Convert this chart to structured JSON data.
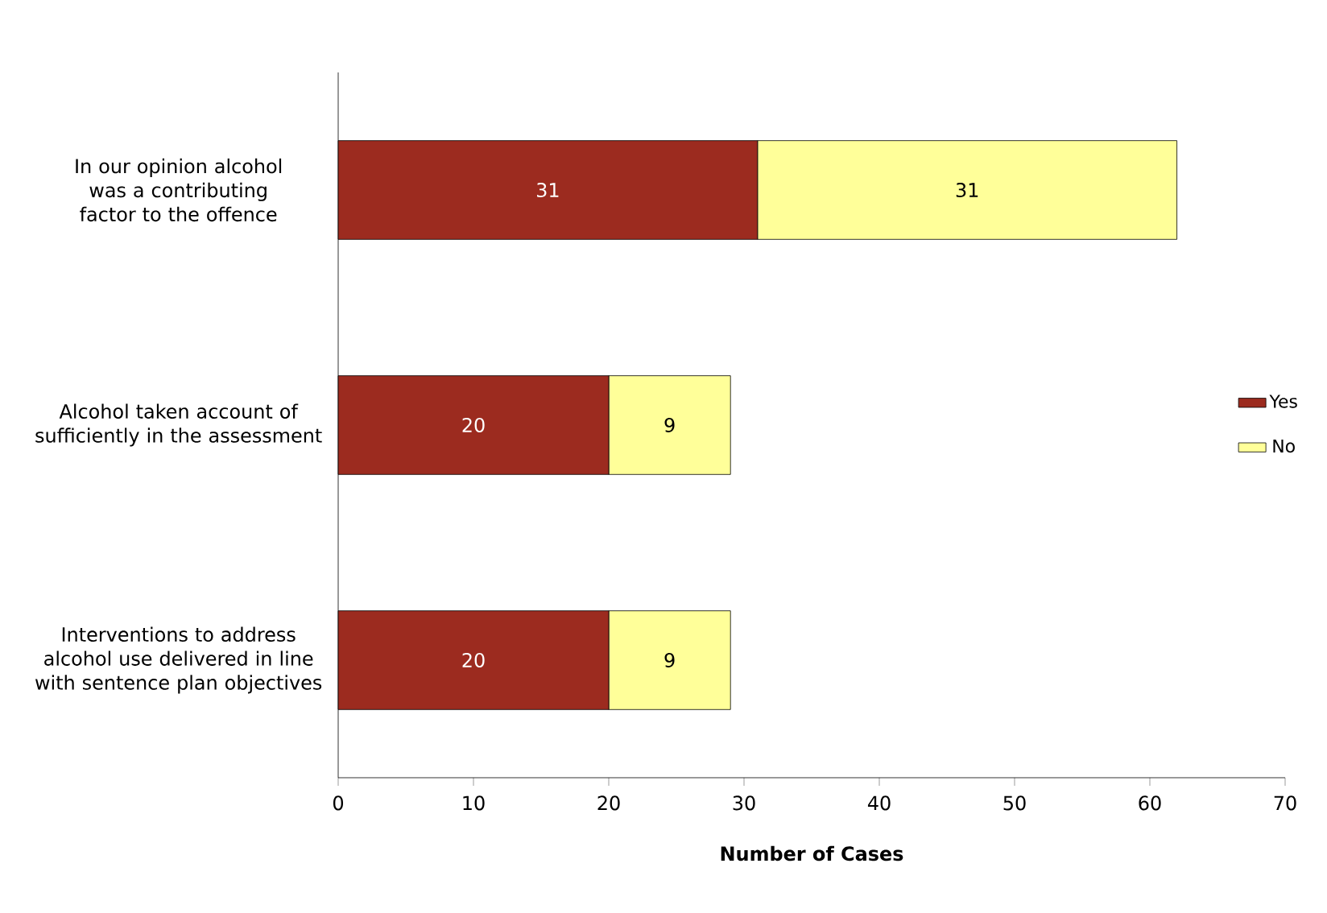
{
  "chart_data": {
    "type": "bar",
    "orientation": "horizontal",
    "stacked": true,
    "xlabel": "**Number of Cases**",
    "categories": [
      "In our opinion alcohol was a contributing factor to the offence",
      "Alcohol taken account of sufficiently in the assessment",
      "Interventions to address alcohol use delivered in line with sentence plan objectives"
    ],
    "series": [
      {
        "name": "Yes",
        "color": "#9c2b1f",
        "values": [
          31,
          20,
          20
        ],
        "value_labels": [
          "31",
          "20",
          "20"
        ]
      },
      {
        "name": "No",
        "color": "#ffff99",
        "values": [
          31,
          9,
          9
        ],
        "value_labels": [
          "31",
          "9",
          "9"
        ]
      }
    ],
    "xlim": [
      0,
      70
    ],
    "xticks": [
      0,
      10,
      20,
      30,
      40,
      50,
      60,
      70
    ],
    "grid": false,
    "legend": "right"
  }
}
